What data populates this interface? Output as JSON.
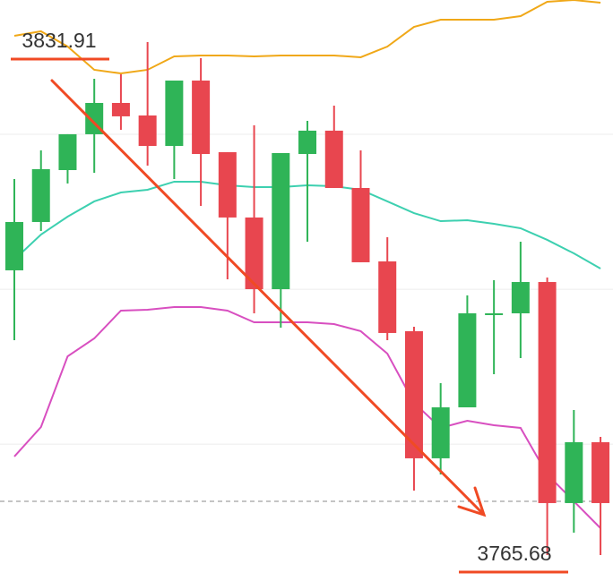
{
  "chart_data": {
    "type": "candlestick",
    "up_color": "#2fb457",
    "down_color": "#e8464f",
    "ylim": [
      3762.33,
      3837.34
    ],
    "gridlines": [
      3820,
      3800,
      3780
    ],
    "candles": [
      {
        "open": 3802.44,
        "high": 3814.23,
        "low": 3793.42,
        "close": 3808.68
      },
      {
        "open": 3808.68,
        "high": 3817.92,
        "low": 3807.52,
        "close": 3815.5
      },
      {
        "open": 3815.38,
        "high": 3820.01,
        "low": 3813.65,
        "close": 3820.01
      },
      {
        "open": 3820.01,
        "high": 3827.17,
        "low": 3815.04,
        "close": 3824.05
      },
      {
        "open": 3824.05,
        "high": 3827.75,
        "low": 3820.58,
        "close": 3822.32
      },
      {
        "open": 3822.43,
        "high": 3831.91,
        "low": 3815.96,
        "close": 3818.5
      },
      {
        "open": 3818.5,
        "high": 3826.94,
        "low": 3814.23,
        "close": 3826.94
      },
      {
        "open": 3826.94,
        "high": 3829.83,
        "low": 3810.76,
        "close": 3817.46
      },
      {
        "open": 3817.69,
        "high": 3817.69,
        "low": 3801.28,
        "close": 3809.26
      },
      {
        "open": 3809.26,
        "high": 3821.16,
        "low": 3796.89,
        "close": 3800.01
      },
      {
        "open": 3800.01,
        "high": 3817.58,
        "low": 3795.04,
        "close": 3817.58
      },
      {
        "open": 3817.46,
        "high": 3821.74,
        "low": 3806.14,
        "close": 3820.47
      },
      {
        "open": 3820.47,
        "high": 3823.7,
        "low": 3813.07,
        "close": 3813.07
      },
      {
        "open": 3813.07,
        "high": 3817.92,
        "low": 3803.48,
        "close": 3803.48
      },
      {
        "open": 3803.59,
        "high": 3806.71,
        "low": 3793.42,
        "close": 3794.35
      },
      {
        "open": 3794.58,
        "high": 3795.16,
        "low": 3774.01,
        "close": 3778.17
      },
      {
        "open": 3778.17,
        "high": 3787.87,
        "low": 3776.09,
        "close": 3784.75
      },
      {
        "open": 3784.75,
        "high": 3799.2,
        "low": 3784.75,
        "close": 3796.89
      },
      {
        "open": 3796.66,
        "high": 3801.17,
        "low": 3789.03,
        "close": 3796.89
      },
      {
        "open": 3796.89,
        "high": 3806.14,
        "low": 3791.11,
        "close": 3800.93
      },
      {
        "open": 3800.93,
        "high": 3801.51,
        "low": 3765.68,
        "close": 3772.39
      },
      {
        "open": 3772.39,
        "high": 3784.41,
        "low": 3768.57,
        "close": 3780.25
      },
      {
        "open": 3780.25,
        "high": 3780.94,
        "low": 3765.68,
        "close": 3772.39
      }
    ],
    "lines": [
      {
        "color": "#f0a818",
        "values": [
          3832.72,
          3833.3,
          3831.33,
          3828.33,
          3827.86,
          3828.33,
          3830.06,
          3830.18,
          3830.18,
          3830.06,
          3830.18,
          3830.18,
          3830.18,
          3829.95,
          3831.33,
          3833.87,
          3834.8,
          3834.8,
          3834.8,
          3835.26,
          3837.11,
          3837.34,
          3836.99
        ]
      },
      {
        "color": "#3dd0b0",
        "values": [
          3803.82,
          3807.06,
          3809.37,
          3811.34,
          3812.49,
          3812.84,
          3813.88,
          3813.88,
          3813.42,
          3813.19,
          3813.19,
          3813.42,
          3813.3,
          3812.84,
          3811.34,
          3809.83,
          3808.79,
          3808.91,
          3808.45,
          3807.87,
          3806.37,
          3804.63,
          3802.67
        ]
      },
      {
        "color": "#d84fc0",
        "values": [
          3778.4,
          3782.21,
          3791.34,
          3793.65,
          3797.24,
          3797.35,
          3797.7,
          3797.7,
          3797.24,
          3795.73,
          3795.73,
          3795.73,
          3795.5,
          3794.58,
          3791.69,
          3785.33,
          3782.1,
          3783.02,
          3782.44,
          3782.1,
          3776.09,
          3772.62,
          3769.15
        ]
      }
    ],
    "annotations": [
      {
        "value": 3831.91,
        "label": "3831.91"
      },
      {
        "value": 3765.68,
        "label": "3765.68"
      }
    ]
  }
}
